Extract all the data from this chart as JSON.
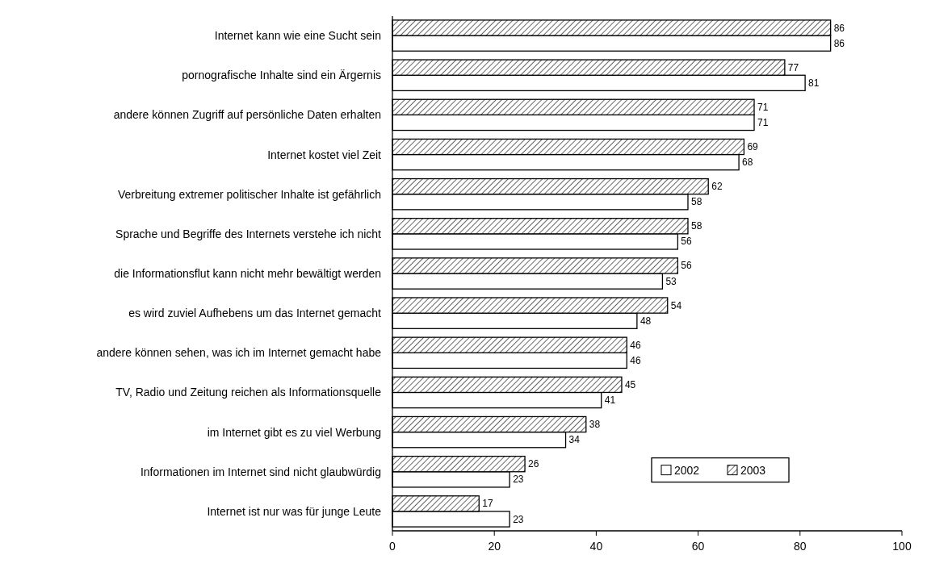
{
  "chart_data": {
    "type": "bar",
    "orientation": "horizontal",
    "categories": [
      "Internet kann wie eine Sucht sein",
      "pornografische Inhalte sind ein Ärgernis",
      "andere können Zugriff auf persönliche Daten erhalten",
      "Internet kostet viel Zeit",
      "Verbreitung extremer politischer Inhalte ist gefährlich",
      "Sprache und Begriffe des Internets verstehe ich nicht",
      "die Informationsflut kann nicht mehr bewältigt werden",
      "es wird zuviel Aufhebens um das Internet gemacht",
      "andere können sehen, was ich im Internet gemacht habe",
      "TV, Radio und Zeitung reichen als Informationsquelle",
      "im Internet gibt es zu viel Werbung",
      "Informationen im Internet sind nicht glaubwürdig",
      "Internet ist nur was für junge Leute"
    ],
    "series": [
      {
        "name": "2002",
        "color": "#ffffff",
        "values": [
          86,
          81,
          71,
          68,
          58,
          56,
          53,
          48,
          46,
          41,
          34,
          23,
          23
        ]
      },
      {
        "name": "2003",
        "color": "#000000",
        "values": [
          86,
          77,
          71,
          69,
          62,
          58,
          56,
          54,
          46,
          45,
          38,
          26,
          17
        ]
      }
    ],
    "xlim": [
      0,
      100
    ],
    "xticks": [
      0,
      20,
      40,
      60,
      80,
      100
    ],
    "data_labels": true,
    "legend": "bottom right",
    "grid": false
  }
}
